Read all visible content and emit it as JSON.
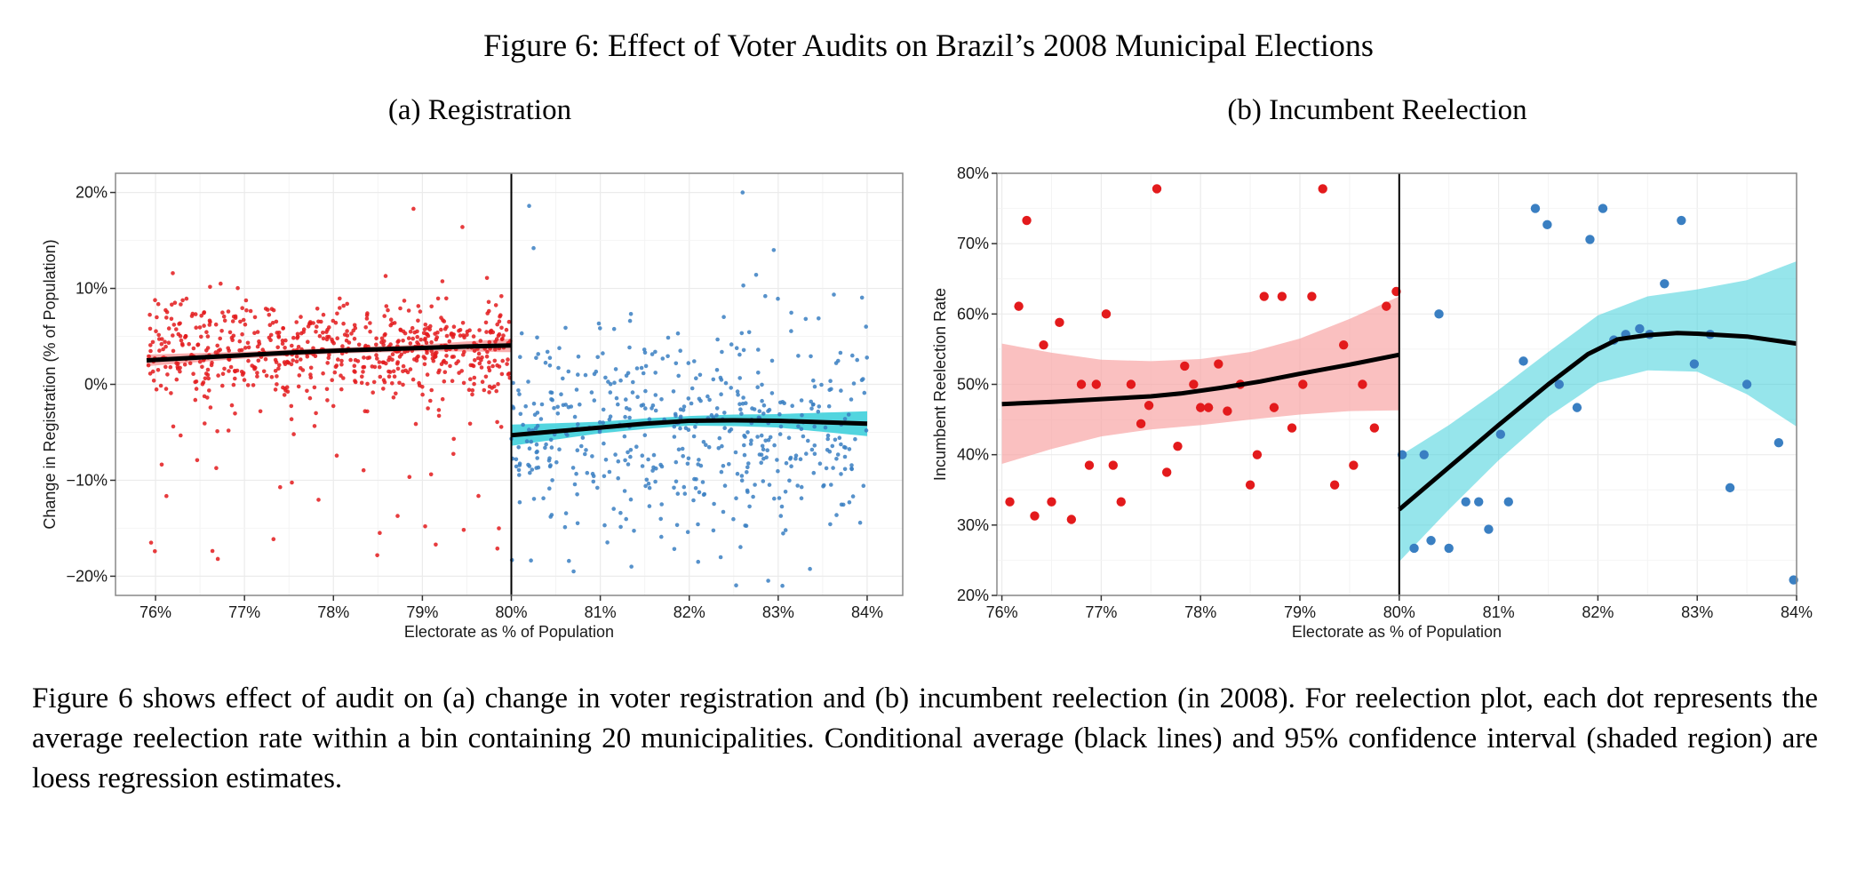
{
  "figure_title": "Figure 6: Effect of Voter Audits on Brazil’s 2008 Municipal Elections",
  "caption": "Figure 6 shows effect of audit on (a) change in voter registration and (b) incumbent reelection (in 2008). For reelection plot, each dot represents the average reelection rate within a bin containing 20 municipalities. Conditional average (black lines) and 95% confidence interval (shaded region) are loess regression estimates.",
  "colors": {
    "left_points": "#e31a1c",
    "right_points": "#3a7fc2",
    "left_band": "#f8a5a5",
    "right_band": "#3fd0db",
    "fit_line": "#000000",
    "grid": "#ebebeb",
    "cutoff_line": "#000000"
  },
  "chart_data": [
    {
      "type": "scatter",
      "title": "(a) Registration",
      "xlabel": "Electorate as % of Population",
      "ylabel": "Change in Registration (% of Population)",
      "xlim": [
        75.55,
        84.4
      ],
      "ylim": [
        -22,
        22
      ],
      "cutoff": 80,
      "grid": true,
      "x_ticks": [
        76,
        77,
        78,
        79,
        80,
        81,
        82,
        83,
        84
      ],
      "x_tick_labels": [
        "76%",
        "77%",
        "78%",
        "79%",
        "80%",
        "81%",
        "82%",
        "83%",
        "84%"
      ],
      "y_ticks": [
        20,
        10,
        0,
        -10,
        -20
      ],
      "y_tick_labels": [
        "20%",
        "10%",
        "0%",
        "−10%",
        "−20%"
      ],
      "point_cloud_left": {
        "x_range": [
          75.9,
          80
        ],
        "center": 3.5,
        "spread": 2.6,
        "count": 700
      },
      "point_cloud_right": {
        "x_range": [
          80,
          84
        ],
        "center": -5,
        "spread": 5.5,
        "count": 520
      },
      "notable_points": [
        {
          "x": 82.6,
          "y": 20
        },
        {
          "x": 80.2,
          "y": 18.6
        },
        {
          "x": 78.9,
          "y": 18.3
        },
        {
          "x": 79.45,
          "y": 16.4
        },
        {
          "x": 80.25,
          "y": 14.2
        },
        {
          "x": 82.95,
          "y": 14
        },
        {
          "x": 80.7,
          "y": -19.5
        },
        {
          "x": 81.35,
          "y": -19
        },
        {
          "x": 76.7,
          "y": -18.2
        },
        {
          "x": 75.95,
          "y": -16.5
        },
        {
          "x": 79.15,
          "y": -16.7
        },
        {
          "x": 82.1,
          "y": -18.5
        }
      ],
      "series": [
        {
          "side": "left",
          "fit": [
            [
              75.9,
              2.5
            ],
            [
              76.5,
              2.8
            ],
            [
              77,
              3.05
            ],
            [
              77.5,
              3.3
            ],
            [
              78,
              3.5
            ],
            [
              78.5,
              3.65
            ],
            [
              79,
              3.8
            ],
            [
              79.5,
              3.95
            ],
            [
              80,
              4.05
            ]
          ],
          "band_half_width": [
            [
              75.9,
              0.6
            ],
            [
              77,
              0.35
            ],
            [
              78,
              0.3
            ],
            [
              79,
              0.35
            ],
            [
              80,
              0.7
            ]
          ]
        },
        {
          "side": "right",
          "fit": [
            [
              80,
              -5.3
            ],
            [
              80.5,
              -4.9
            ],
            [
              81,
              -4.5
            ],
            [
              81.5,
              -4.1
            ],
            [
              82,
              -3.8
            ],
            [
              82.5,
              -3.75
            ],
            [
              83,
              -3.8
            ],
            [
              83.5,
              -3.95
            ],
            [
              84,
              -4.1
            ]
          ],
          "band_half_width": [
            [
              80,
              1.1
            ],
            [
              81,
              0.6
            ],
            [
              82,
              0.5
            ],
            [
              83,
              0.7
            ],
            [
              84,
              1.3
            ]
          ]
        }
      ]
    },
    {
      "type": "scatter",
      "title": "(b) Incumbent Reelection",
      "xlabel": "Electorate as % of Population",
      "ylabel": "Incumbent Reelection Rate",
      "xlim": [
        75.95,
        84.0
      ],
      "ylim": [
        20,
        80
      ],
      "cutoff": 80,
      "grid": true,
      "x_ticks": [
        76,
        77,
        78,
        79,
        80,
        81,
        82,
        83,
        84
      ],
      "x_tick_labels": [
        "76%",
        "77%",
        "78%",
        "79%",
        "80%",
        "81%",
        "82%",
        "83%",
        "84%"
      ],
      "y_ticks": [
        80,
        70,
        60,
        50,
        40,
        30,
        20
      ],
      "y_tick_labels": [
        "80%",
        "70%",
        "60%",
        "50%",
        "40%",
        "30%",
        "20%"
      ],
      "points_left": [
        [
          76.08,
          33.3
        ],
        [
          76.17,
          61.1
        ],
        [
          76.25,
          73.3
        ],
        [
          76.33,
          31.3
        ],
        [
          76.42,
          55.6
        ],
        [
          76.5,
          33.3
        ],
        [
          76.58,
          58.8
        ],
        [
          76.7,
          30.8
        ],
        [
          76.8,
          50
        ],
        [
          76.88,
          38.5
        ],
        [
          76.95,
          50
        ],
        [
          77.05,
          60
        ],
        [
          77.12,
          38.5
        ],
        [
          77.2,
          33.3
        ],
        [
          77.3,
          50
        ],
        [
          77.4,
          44.4
        ],
        [
          77.48,
          47
        ],
        [
          77.56,
          77.8
        ],
        [
          77.66,
          37.5
        ],
        [
          77.77,
          41.2
        ],
        [
          77.84,
          52.6
        ],
        [
          77.93,
          50
        ],
        [
          78.0,
          46.7
        ],
        [
          78.08,
          46.7
        ],
        [
          78.18,
          52.9
        ],
        [
          78.27,
          46.2
        ],
        [
          78.4,
          50
        ],
        [
          78.5,
          35.7
        ],
        [
          78.57,
          40
        ],
        [
          78.64,
          62.5
        ],
        [
          78.74,
          46.7
        ],
        [
          78.82,
          62.5
        ],
        [
          78.92,
          43.8
        ],
        [
          79.03,
          50
        ],
        [
          79.12,
          62.5
        ],
        [
          79.23,
          77.8
        ],
        [
          79.35,
          35.7
        ],
        [
          79.44,
          55.6
        ],
        [
          79.54,
          38.5
        ],
        [
          79.63,
          50
        ],
        [
          79.75,
          43.8
        ],
        [
          79.87,
          61.1
        ],
        [
          79.97,
          63.2
        ]
      ],
      "points_right": [
        [
          80.03,
          40
        ],
        [
          80.15,
          26.7
        ],
        [
          80.25,
          40
        ],
        [
          80.32,
          27.8
        ],
        [
          80.4,
          60
        ],
        [
          80.5,
          26.7
        ],
        [
          80.67,
          33.3
        ],
        [
          80.8,
          33.3
        ],
        [
          80.9,
          29.4
        ],
        [
          81.02,
          42.9
        ],
        [
          81.1,
          33.3
        ],
        [
          81.25,
          53.3
        ],
        [
          81.37,
          75
        ],
        [
          81.49,
          72.7
        ],
        [
          81.61,
          50
        ],
        [
          81.79,
          46.7
        ],
        [
          81.92,
          70.6
        ],
        [
          82.05,
          75
        ],
        [
          82.16,
          56.3
        ],
        [
          82.28,
          57.1
        ],
        [
          82.42,
          57.9
        ],
        [
          82.52,
          57.1
        ],
        [
          82.67,
          64.3
        ],
        [
          82.84,
          73.3
        ],
        [
          82.97,
          52.9
        ],
        [
          83.13,
          57.1
        ],
        [
          83.33,
          35.3
        ],
        [
          83.5,
          50
        ],
        [
          83.82,
          41.7
        ],
        [
          83.97,
          22.2
        ]
      ],
      "series": [
        {
          "side": "left",
          "fit": [
            [
              76.0,
              47.2
            ],
            [
              76.5,
              47.5
            ],
            [
              77.0,
              47.9
            ],
            [
              77.5,
              48.3
            ],
            [
              77.8,
              48.7
            ],
            [
              78.2,
              49.5
            ],
            [
              78.6,
              50.4
            ],
            [
              79.0,
              51.5
            ],
            [
              79.5,
              52.8
            ],
            [
              80.0,
              54.2
            ]
          ],
          "band_upper": [
            [
              76.0,
              55.8
            ],
            [
              76.5,
              54.5
            ],
            [
              77.0,
              53.5
            ],
            [
              77.5,
              53.3
            ],
            [
              78.0,
              53.6
            ],
            [
              78.5,
              54.6
            ],
            [
              79.0,
              56.5
            ],
            [
              79.5,
              59.3
            ],
            [
              80.0,
              62.5
            ]
          ],
          "band_lower": [
            [
              76.0,
              38.7
            ],
            [
              76.5,
              40.8
            ],
            [
              77.0,
              42.6
            ],
            [
              77.5,
              43.6
            ],
            [
              78.0,
              44.2
            ],
            [
              78.5,
              45.0
            ],
            [
              79.0,
              45.7
            ],
            [
              79.5,
              46.2
            ],
            [
              80.0,
              46.3
            ]
          ]
        },
        {
          "side": "right",
          "fit": [
            [
              80.0,
              32.2
            ],
            [
              80.5,
              38.2
            ],
            [
              81.0,
              44.2
            ],
            [
              81.5,
              50.0
            ],
            [
              81.9,
              54.3
            ],
            [
              82.2,
              56.4
            ],
            [
              82.5,
              57.0
            ],
            [
              82.8,
              57.3
            ],
            [
              83.0,
              57.2
            ],
            [
              83.5,
              56.8
            ],
            [
              84.0,
              55.8
            ]
          ],
          "band_upper": [
            [
              80.0,
              39.8
            ],
            [
              80.5,
              44.2
            ],
            [
              81.0,
              49.2
            ],
            [
              81.5,
              54.6
            ],
            [
              82.0,
              59.8
            ],
            [
              82.5,
              62.5
            ],
            [
              83.0,
              63.5
            ],
            [
              83.5,
              64.8
            ],
            [
              84.0,
              67.5
            ]
          ],
          "band_lower": [
            [
              80.0,
              24.8
            ],
            [
              80.5,
              32.2
            ],
            [
              81.0,
              39.2
            ],
            [
              81.5,
              45.4
            ],
            [
              82.0,
              50.2
            ],
            [
              82.5,
              52.0
            ],
            [
              83.0,
              51.8
            ],
            [
              83.5,
              48.6
            ],
            [
              84.0,
              44.0
            ]
          ]
        }
      ]
    }
  ]
}
